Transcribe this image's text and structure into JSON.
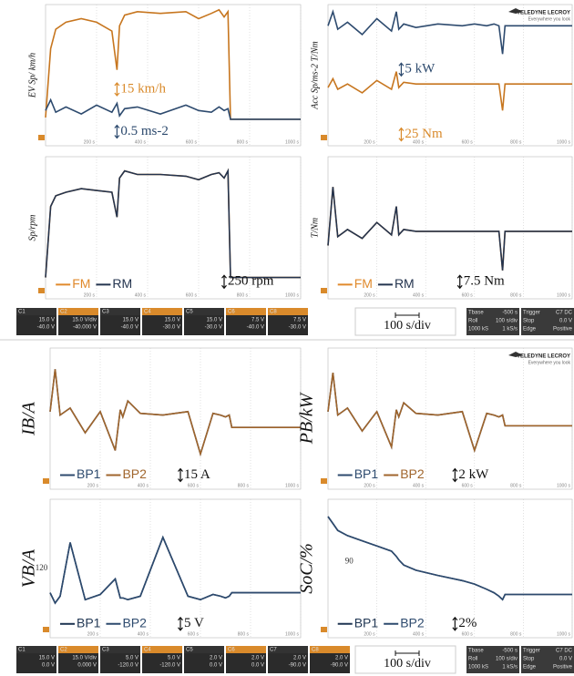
{
  "chart_data": [
    {
      "type": "line",
      "ylabel": "EV Sp/ km/h",
      "x": [
        0,
        20,
        40,
        80,
        140,
        200,
        260,
        280,
        290,
        310,
        360,
        450,
        550,
        600,
        650,
        680,
        700,
        715,
        725,
        1000
      ],
      "xlim": [
        0,
        1000
      ],
      "xticks": [
        {
          "value": 200,
          "label": "200 s"
        },
        {
          "value": 400,
          "label": "400 s"
        },
        {
          "value": 600,
          "label": "600 s"
        },
        {
          "value": 800,
          "label": "800 s"
        },
        {
          "value": 1000,
          "label": "1000 s"
        }
      ],
      "ylim": [
        0,
        8
      ],
      "grid": true,
      "series": [
        {
          "color": "#c7761f",
          "values": [
            1.6,
            5.5,
            6.6,
            7.0,
            7.2,
            7.0,
            6.5,
            4.3,
            6.8,
            7.4,
            7.6,
            7.5,
            7.6,
            7.2,
            7.5,
            7.7,
            7.3,
            7.6,
            1.5,
            1.5
          ]
        },
        {
          "color": "#2d4a6e",
          "values": [
            2.0,
            2.6,
            1.9,
            2.2,
            1.8,
            2.3,
            1.9,
            2.4,
            1.7,
            2.1,
            2.2,
            1.8,
            2.3,
            2.0,
            1.9,
            2.2,
            2.0,
            2.1,
            1.5,
            1.5
          ]
        }
      ],
      "annotations": [
        {
          "text": "15 km/h",
          "color": "#d98a2b",
          "arrow": true
        },
        {
          "text": "0.5 ms-2",
          "color": "#2d4a6e",
          "arrow": true
        }
      ]
    },
    {
      "type": "line",
      "ylabel": "Acc Sp/ms-2 T/Nm",
      "x": [
        0,
        20,
        40,
        80,
        140,
        200,
        260,
        280,
        290,
        310,
        360,
        450,
        550,
        600,
        650,
        680,
        700,
        715,
        725,
        1000
      ],
      "xlim": [
        0,
        1000
      ],
      "xticks": [
        {
          "value": 200,
          "label": "200 s"
        },
        {
          "value": 400,
          "label": "400 s"
        },
        {
          "value": 600,
          "label": "600 s"
        },
        {
          "value": 800,
          "label": "800 s"
        },
        {
          "value": 1000,
          "label": "1000 s"
        }
      ],
      "ylim": [
        0,
        8
      ],
      "grid": true,
      "series": [
        {
          "color": "#2d4a6e",
          "values": [
            6.8,
            7.6,
            6.6,
            7.0,
            6.3,
            7.2,
            6.5,
            7.6,
            6.6,
            6.9,
            6.7,
            6.9,
            6.8,
            6.9,
            6.8,
            6.9,
            6.8,
            5.2,
            6.8,
            6.8
          ]
        },
        {
          "color": "#c7761f",
          "values": [
            3.3,
            3.8,
            3.2,
            3.5,
            3.0,
            3.7,
            3.2,
            4.2,
            3.3,
            3.6,
            3.5,
            3.5,
            3.5,
            3.5,
            3.5,
            3.5,
            3.5,
            2.0,
            3.5,
            3.5
          ]
        }
      ],
      "annotations": [
        {
          "text": "5 kW",
          "color": "#2d4a6e",
          "arrow": true
        },
        {
          "text": "25 Nm",
          "color": "#d98a2b",
          "arrow": true
        }
      ]
    },
    {
      "type": "line",
      "ylabel": "Sp/rpm",
      "x": [
        0,
        20,
        40,
        80,
        140,
        200,
        260,
        280,
        290,
        310,
        360,
        450,
        550,
        600,
        650,
        680,
        700,
        715,
        725,
        1000
      ],
      "xlim": [
        0,
        1000
      ],
      "xticks": [
        {
          "value": 200,
          "label": "200 s"
        },
        {
          "value": 400,
          "label": "400 s"
        },
        {
          "value": 600,
          "label": "600 s"
        },
        {
          "value": 800,
          "label": "800 s"
        },
        {
          "value": 1000,
          "label": "1000 s"
        }
      ],
      "ylim": [
        0,
        8
      ],
      "grid": true,
      "series": [
        {
          "name": "FM",
          "color": "#e08a2c",
          "values": [
            1.2,
            5.2,
            5.8,
            6.0,
            6.2,
            6.1,
            6.0,
            4.6,
            6.8,
            7.2,
            7.0,
            7.0,
            6.9,
            6.7,
            7.0,
            7.1,
            6.8,
            7.2,
            1.2,
            1.2
          ]
        },
        {
          "name": "RM",
          "color": "#24344f",
          "values": [
            1.2,
            5.2,
            5.8,
            6.0,
            6.2,
            6.1,
            6.0,
            4.6,
            6.8,
            7.2,
            7.0,
            7.0,
            6.9,
            6.7,
            7.0,
            7.1,
            6.8,
            7.2,
            1.2,
            1.2
          ]
        }
      ],
      "annotations": [
        {
          "text": "250 rpm",
          "color": "#111",
          "arrow": true
        }
      ]
    },
    {
      "type": "line",
      "ylabel": "T/Nm",
      "x": [
        0,
        20,
        40,
        80,
        140,
        200,
        260,
        280,
        290,
        310,
        360,
        450,
        550,
        600,
        650,
        680,
        700,
        715,
        725,
        1000
      ],
      "xlim": [
        0,
        1000
      ],
      "xticks": [
        {
          "value": 200,
          "label": "200 s"
        },
        {
          "value": 400,
          "label": "400 s"
        },
        {
          "value": 600,
          "label": "600 s"
        },
        {
          "value": 800,
          "label": "800 s"
        },
        {
          "value": 1000,
          "label": "1000 s"
        }
      ],
      "ylim": [
        0,
        8
      ],
      "grid": true,
      "series": [
        {
          "name": "FM",
          "color": "#e08a2c",
          "values": [
            3.0,
            6.3,
            3.5,
            3.9,
            3.4,
            4.3,
            3.6,
            5.2,
            3.6,
            3.9,
            3.8,
            3.8,
            3.8,
            3.8,
            3.8,
            3.8,
            3.8,
            1.6,
            3.8,
            3.8
          ]
        },
        {
          "name": "RM",
          "color": "#24344f",
          "values": [
            3.0,
            6.3,
            3.5,
            3.9,
            3.4,
            4.3,
            3.6,
            5.2,
            3.6,
            3.9,
            3.8,
            3.8,
            3.8,
            3.8,
            3.8,
            3.8,
            3.8,
            1.6,
            3.8,
            3.8
          ]
        }
      ],
      "annotations": [
        {
          "text": "7.5 Nm",
          "color": "#111",
          "arrow": true
        }
      ]
    },
    {
      "type": "line",
      "ylabel": "IB/A",
      "x": [
        0,
        20,
        40,
        80,
        140,
        200,
        260,
        280,
        290,
        310,
        360,
        450,
        550,
        600,
        650,
        680,
        700,
        715,
        725,
        1000
      ],
      "xlim": [
        0,
        1000
      ],
      "xticks": [
        {
          "value": 200,
          "label": "200 s"
        },
        {
          "value": 400,
          "label": "400 s"
        },
        {
          "value": 600,
          "label": "600 s"
        },
        {
          "value": 800,
          "label": "800 s"
        },
        {
          "value": 1000,
          "label": "1000 s"
        }
      ],
      "ylim": [
        0,
        8
      ],
      "grid": true,
      "series": [
        {
          "name": "BP1",
          "color": "#2d4a6e",
          "values": [
            4.4,
            6.8,
            4.2,
            4.6,
            3.2,
            4.4,
            2.2,
            4.5,
            4.1,
            5.0,
            4.3,
            4.2,
            4.4,
            2.0,
            4.3,
            4.2,
            4.1,
            4.2,
            3.5,
            3.5
          ]
        },
        {
          "name": "BP2",
          "color": "#a0652c",
          "values": [
            4.4,
            6.8,
            4.2,
            4.6,
            3.2,
            4.4,
            2.2,
            4.5,
            4.1,
            5.0,
            4.3,
            4.2,
            4.4,
            2.0,
            4.3,
            4.2,
            4.1,
            4.2,
            3.5,
            3.5
          ]
        }
      ],
      "annotations": [
        {
          "text": "15 A",
          "color": "#111",
          "arrow": true
        }
      ]
    },
    {
      "type": "line",
      "ylabel": "PB/kW",
      "x": [
        0,
        20,
        40,
        80,
        140,
        200,
        260,
        280,
        290,
        310,
        360,
        450,
        550,
        600,
        650,
        680,
        700,
        715,
        725,
        1000
      ],
      "xlim": [
        0,
        1000
      ],
      "xticks": [
        {
          "value": 200,
          "label": "200 s"
        },
        {
          "value": 400,
          "label": "400 s"
        },
        {
          "value": 600,
          "label": "600 s"
        },
        {
          "value": 800,
          "label": "800 s"
        },
        {
          "value": 1000,
          "label": "1000 s"
        }
      ],
      "ylim": [
        0,
        8
      ],
      "grid": true,
      "series": [
        {
          "name": "BP1",
          "color": "#2d4a6e",
          "values": [
            4.4,
            6.6,
            4.2,
            4.6,
            3.3,
            4.4,
            2.4,
            4.5,
            4.1,
            4.9,
            4.3,
            4.2,
            4.4,
            2.2,
            4.3,
            4.2,
            4.1,
            4.2,
            3.6,
            3.6
          ]
        },
        {
          "name": "BP2",
          "color": "#a0652c",
          "values": [
            4.4,
            6.6,
            4.2,
            4.6,
            3.3,
            4.4,
            2.4,
            4.5,
            4.1,
            4.9,
            4.3,
            4.2,
            4.4,
            2.2,
            4.3,
            4.2,
            4.1,
            4.2,
            3.6,
            3.6
          ]
        }
      ],
      "annotations": [
        {
          "text": "2 kW",
          "color": "#111",
          "arrow": true
        }
      ]
    },
    {
      "type": "line",
      "ylabel": "VB/A",
      "x": [
        0,
        20,
        40,
        80,
        140,
        200,
        260,
        280,
        290,
        310,
        360,
        450,
        550,
        600,
        650,
        680,
        700,
        715,
        725,
        1000
      ],
      "xlim": [
        0,
        1000
      ],
      "xticks": [
        {
          "value": 200,
          "label": "200 s"
        },
        {
          "value": 400,
          "label": "400 s"
        },
        {
          "value": 600,
          "label": "600 s"
        },
        {
          "value": 800,
          "label": "800 s"
        },
        {
          "value": 1000,
          "label": "1000 s"
        }
      ],
      "ylim": [
        0,
        8
      ],
      "grid": true,
      "series": [
        {
          "name": "BP1",
          "color": "#1f3552",
          "values": [
            2.6,
            2.0,
            2.4,
            5.5,
            2.2,
            2.5,
            3.4,
            2.3,
            2.3,
            2.2,
            2.4,
            5.8,
            2.4,
            2.2,
            2.5,
            2.4,
            2.3,
            2.4,
            2.6,
            2.6
          ]
        },
        {
          "name": "BP2",
          "color": "#2d4a6e",
          "values": [
            2.6,
            2.0,
            2.4,
            5.5,
            2.2,
            2.5,
            3.4,
            2.3,
            2.3,
            2.2,
            2.4,
            5.8,
            2.4,
            2.2,
            2.5,
            2.4,
            2.3,
            2.4,
            2.6,
            2.6
          ]
        }
      ],
      "annotations": [
        {
          "text": "5 V",
          "color": "#111",
          "arrow": true
        },
        {
          "text": "120",
          "color": "#333",
          "arrow": false
        }
      ]
    },
    {
      "type": "line",
      "ylabel": "SoC/%",
      "x": [
        0,
        20,
        40,
        80,
        140,
        200,
        260,
        280,
        290,
        310,
        360,
        450,
        550,
        600,
        650,
        680,
        700,
        715,
        725,
        1000
      ],
      "xlim": [
        0,
        1000
      ],
      "xticks": [
        {
          "value": 200,
          "label": "200 s"
        },
        {
          "value": 400,
          "label": "400 s"
        },
        {
          "value": 600,
          "label": "600 s"
        },
        {
          "value": 800,
          "label": "800 s"
        },
        {
          "value": 1000,
          "label": "1000 s"
        }
      ],
      "ylim": [
        0,
        8
      ],
      "grid": true,
      "series": [
        {
          "name": "BP1",
          "color": "#1f3552",
          "values": [
            7.0,
            6.6,
            6.2,
            5.9,
            5.6,
            5.3,
            5.0,
            4.7,
            4.5,
            4.2,
            3.9,
            3.6,
            3.3,
            3.1,
            2.8,
            2.6,
            2.4,
            2.2,
            2.5,
            2.5
          ]
        },
        {
          "name": "BP2",
          "color": "#2d4a6e",
          "values": [
            7.0,
            6.6,
            6.2,
            5.9,
            5.6,
            5.3,
            5.0,
            4.7,
            4.5,
            4.2,
            3.9,
            3.6,
            3.3,
            3.1,
            2.8,
            2.6,
            2.4,
            2.2,
            2.5,
            2.5
          ]
        }
      ],
      "annotations": [
        {
          "text": "2%",
          "color": "#111",
          "arrow": true
        },
        {
          "text": "90",
          "color": "#333",
          "arrow": false
        }
      ]
    }
  ],
  "logo": {
    "brand": "TELEDYNE LECROY",
    "tagline": "Everywhere you look"
  },
  "status_bars": [
    {
      "channels": [
        {
          "id": "C1",
          "color": "#333",
          "lines": [
            "15.0 V",
            "-40.0 V"
          ]
        },
        {
          "id": "C2",
          "color": "#d98a2b",
          "lines": [
            "15.0 V/div",
            "-40.000 V"
          ]
        },
        {
          "id": "C3",
          "color": "#333",
          "lines": [
            "15.0 V",
            "-40.0 V"
          ]
        },
        {
          "id": "C4",
          "color": "#d98a2b",
          "lines": [
            "15.0 V",
            "-30.0 V"
          ]
        },
        {
          "id": "C5",
          "color": "#333",
          "lines": [
            "15.0 V",
            "-30.0 V"
          ]
        },
        {
          "id": "C6",
          "color": "#d98a2b",
          "lines": [
            "7.5 V",
            "-40.0 V"
          ]
        },
        {
          "id": "C8",
          "color": "#d98a2b",
          "lines": [
            "7.5 V",
            "-30.0 V"
          ]
        }
      ],
      "timebase": "100 s/div",
      "info": [
        [
          "Tbase",
          "-500 s"
        ],
        [
          "Roll",
          "100 s/div"
        ],
        [
          "1000 kS",
          "1 kS/s"
        ]
      ],
      "trigger": [
        [
          "Trigger",
          "C7 DC"
        ],
        [
          "Stop",
          "0.0 V"
        ],
        [
          "Edge",
          "Positive"
        ]
      ]
    },
    {
      "channels": [
        {
          "id": "C1",
          "color": "#333",
          "lines": [
            "15.0 V",
            "0.0 V"
          ]
        },
        {
          "id": "C2",
          "color": "#d98a2b",
          "lines": [
            "15.0 V/div",
            "0.000 V"
          ]
        },
        {
          "id": "C3",
          "color": "#333",
          "lines": [
            "5.0 V",
            "-120.0 V"
          ]
        },
        {
          "id": "C4",
          "color": "#d98a2b",
          "lines": [
            "5.0 V",
            "-120.0 V"
          ]
        },
        {
          "id": "C5",
          "color": "#333",
          "lines": [
            "2.0 V",
            "0.0 V"
          ]
        },
        {
          "id": "C6",
          "color": "#d98a2b",
          "lines": [
            "2.0 V",
            "0.0 V"
          ]
        },
        {
          "id": "C7",
          "color": "#333",
          "lines": [
            "2.0 V",
            "-90.0 V"
          ]
        },
        {
          "id": "C8",
          "color": "#d98a2b",
          "lines": [
            "2.0 V",
            "-90.0 V"
          ]
        }
      ],
      "timebase": "100 s/div",
      "info": [
        [
          "Tbase",
          "-500 s"
        ],
        [
          "Roll",
          "100 s/div"
        ],
        [
          "1000 kS",
          "1 kS/s"
        ]
      ],
      "trigger": [
        [
          "Trigger",
          "C7 DC"
        ],
        [
          "Stop",
          "0.0 V"
        ],
        [
          "Edge",
          "Positive"
        ]
      ]
    }
  ]
}
